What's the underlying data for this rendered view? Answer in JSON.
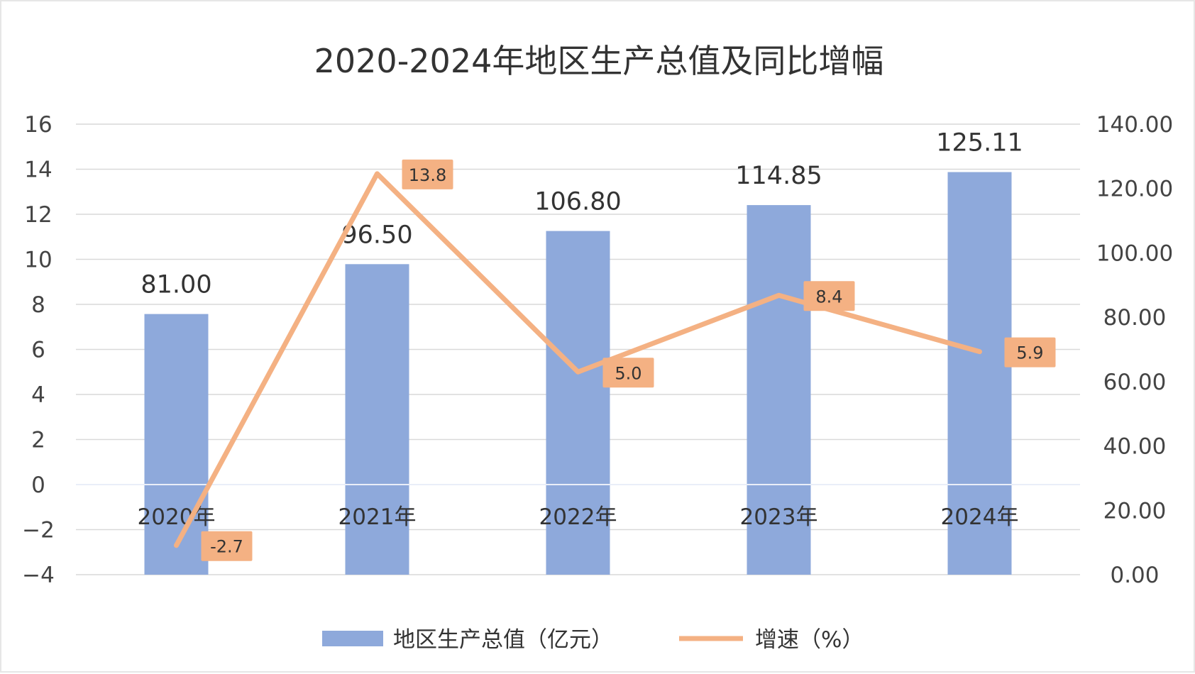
{
  "chart_data": {
    "type": "bar+line",
    "title": "2020-2024年地区生产总值及同比增幅",
    "categories": [
      "2020年",
      "2021年",
      "2022年",
      "2023年",
      "2024年"
    ],
    "series": [
      {
        "name": "地区生产总值（亿元）",
        "type": "bar",
        "axis": "right",
        "values": [
          81.0,
          96.5,
          106.8,
          114.85,
          125.11
        ],
        "labels": [
          "81.00",
          "96.50",
          "106.80",
          "114.85",
          "125.11"
        ],
        "color": "#8EA9DB"
      },
      {
        "name": "增速（%）",
        "type": "line",
        "axis": "left",
        "values": [
          -2.7,
          13.8,
          5.0,
          8.4,
          5.9
        ],
        "labels": [
          "-2.7",
          "13.8",
          "5.0",
          "8.4",
          "5.9"
        ],
        "color": "#F4B183",
        "label_bg": "#F4B183"
      }
    ],
    "left_axis": {
      "ylim": [
        -4,
        16
      ],
      "ticks": [
        "16",
        "14",
        "12",
        "10",
        "8",
        "6",
        "4",
        "2",
        "0",
        "−2",
        "−4"
      ]
    },
    "right_axis": {
      "ylim": [
        0,
        140
      ],
      "ticks": [
        "140.00",
        "120.00",
        "100.00",
        "80.00",
        "60.00",
        "40.00",
        "20.00",
        "0.00"
      ]
    },
    "grid": true,
    "legend_position": "bottom"
  }
}
